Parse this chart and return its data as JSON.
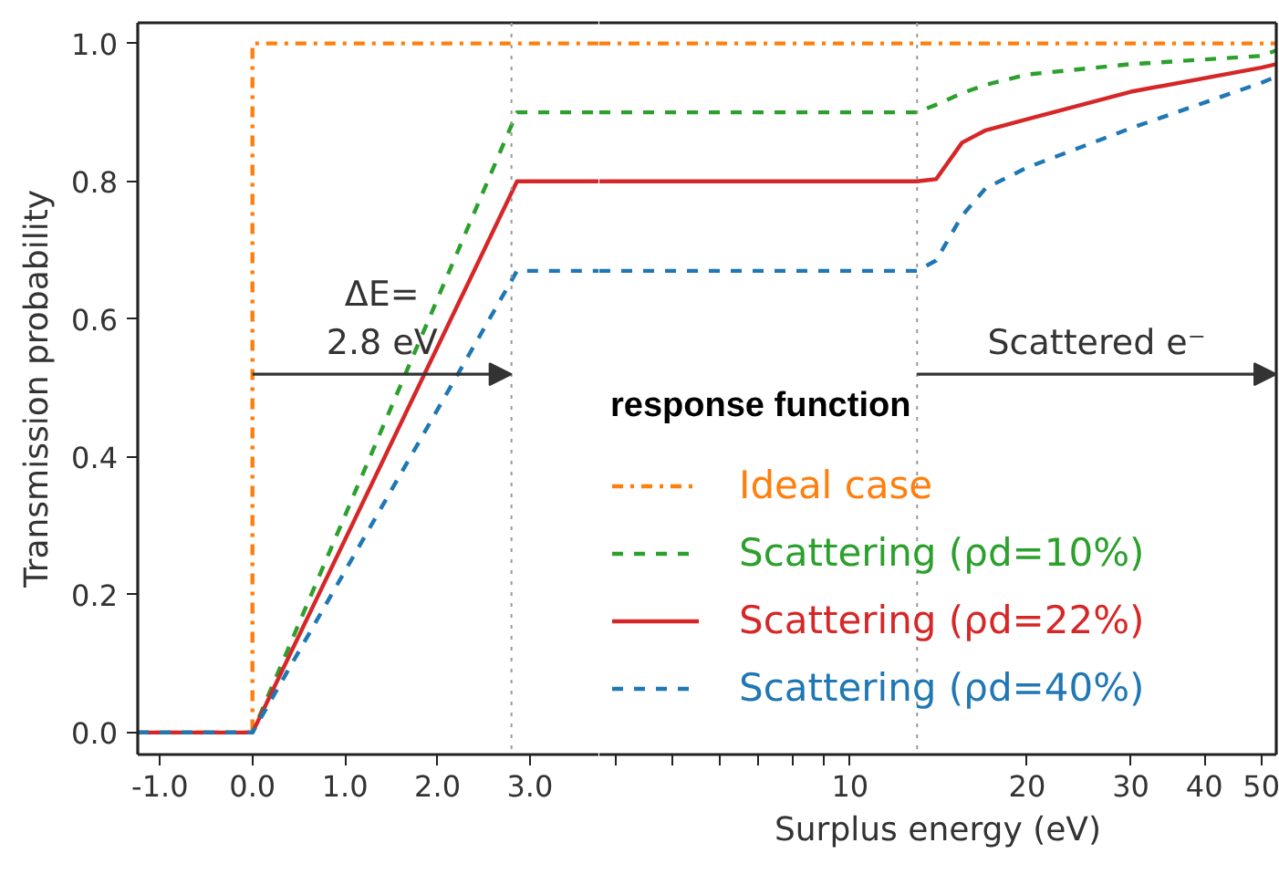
{
  "chart_data": [
    {
      "type": "line",
      "ylabel": "Transmission probability",
      "xlim": [
        -1.24,
        3.75
      ],
      "ylim": [
        -0.032,
        1.03
      ],
      "xticks": [
        {
          "value": -1,
          "label": "-1.0"
        },
        {
          "value": 0,
          "label": "0.0"
        },
        {
          "value": 1,
          "label": "1.0"
        },
        {
          "value": 2,
          "label": "2.0"
        },
        {
          "value": 3,
          "label": "3.0"
        }
      ],
      "yticks": [
        {
          "value": 0,
          "label": "0.0"
        },
        {
          "value": 0.2,
          "label": "0.2"
        },
        {
          "value": 0.4,
          "label": "0.4"
        },
        {
          "value": 0.6,
          "label": "0.6"
        },
        {
          "value": 0.8,
          "label": "0.8"
        },
        {
          "value": 1,
          "label": "1.0"
        }
      ],
      "series": [
        {
          "color": "#ff7f0e",
          "line_style": "dashdot",
          "x": [
            -1.24,
            0,
            0,
            3.75
          ],
          "values": [
            0,
            0,
            1,
            1
          ]
        },
        {
          "color": "#2ca02c",
          "line_style": "dashed",
          "x": [
            -1.24,
            0,
            2.86,
            3.75
          ],
          "values": [
            0,
            0,
            0.9,
            0.9
          ]
        },
        {
          "color": "#d62728",
          "line_style": "solid",
          "x": [
            -1.24,
            0,
            2.86,
            3.75
          ],
          "values": [
            0,
            0,
            0.8,
            0.8
          ]
        },
        {
          "color": "#1f77b4",
          "line_style": "dashed",
          "x": [
            -1.24,
            0,
            2.86,
            3.75
          ],
          "values": [
            0,
            0,
            0.67,
            0.67
          ]
        }
      ],
      "ref_lines": [
        {
          "axis": "x",
          "value": 2.8,
          "color": "#999999",
          "line_style": "dotted"
        }
      ],
      "annotations": [
        {
          "text": "ΔE=\n2.8 eV",
          "x": 0,
          "y": 0.52
        }
      ]
    },
    {
      "type": "line",
      "xlabel": "Surplus energy (eV)",
      "log": "x",
      "xlim": [
        3.75,
        53
      ],
      "ylim": [
        -0.032,
        1.03
      ],
      "tick_labels": "x",
      "legend": "bottom",
      "xticks": [
        {
          "value": 4,
          "label": null
        },
        {
          "value": 5,
          "label": null
        },
        {
          "value": 6,
          "label": null
        },
        {
          "value": 7,
          "label": null
        },
        {
          "value": 8,
          "label": null
        },
        {
          "value": 9,
          "label": null
        },
        10,
        20,
        30,
        40,
        50
      ],
      "series": [
        {
          "name": "Ideal case",
          "color": "#ff7f0e",
          "line_style": "dashdot",
          "x": [
            3.75,
            53
          ],
          "values": [
            1,
            1
          ]
        },
        {
          "name": "Scattering (ρd=10%)",
          "color": "#2ca02c",
          "line_style": "dashed",
          "x": [
            3.75,
            13,
            14,
            15.5,
            17,
            20,
            30,
            50,
            53
          ],
          "values": [
            0.9,
            0.9,
            0.911,
            0.928,
            0.94,
            0.955,
            0.97,
            0.982,
            0.99
          ]
        },
        {
          "name": "Scattering (ρd=22%)",
          "color": "#d62728",
          "line_style": "solid",
          "x": [
            3.75,
            13,
            14,
            15.5,
            17,
            20,
            30,
            50,
            53
          ],
          "values": [
            0.8,
            0.8,
            0.803,
            0.856,
            0.874,
            0.89,
            0.93,
            0.965,
            0.97
          ]
        },
        {
          "name": "Scattering (ρd=40%)",
          "color": "#1f77b4",
          "line_style": "dashed",
          "x": [
            3.75,
            13,
            14,
            15.5,
            17,
            20,
            30,
            50,
            53
          ],
          "values": [
            0.67,
            0.67,
            0.685,
            0.75,
            0.79,
            0.82,
            0.877,
            0.943,
            0.952
          ]
        }
      ],
      "ref_lines": [
        {
          "axis": "x",
          "value": 13,
          "color": "#999999",
          "line_style": "dotted"
        }
      ],
      "annotations": [
        {
          "text": "Scattered e⁻",
          "x": 13,
          "y": 0.52
        },
        "response function"
      ]
    }
  ]
}
